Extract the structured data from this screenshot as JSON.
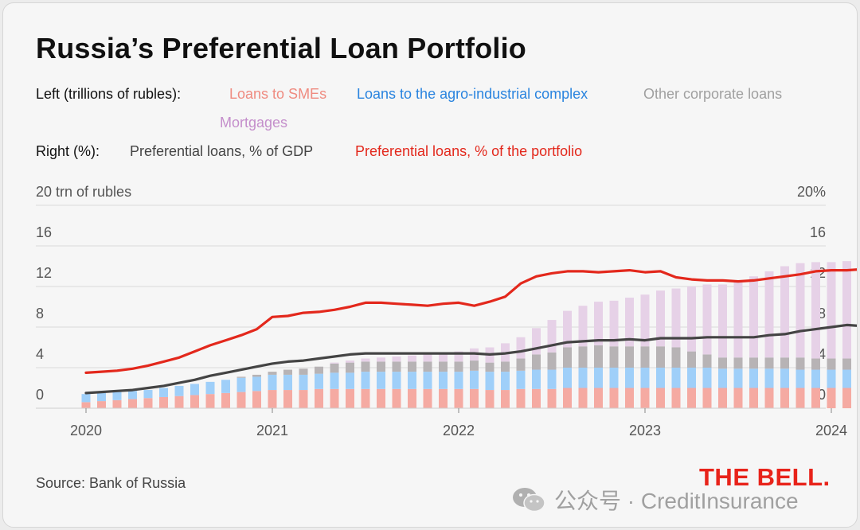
{
  "title": "Russia’s Preferential Loan Portfolio",
  "legend": {
    "left_label": "Left (trillions of rubles):",
    "right_label": "Right (%):",
    "items": {
      "sme": "Loans to SMEs",
      "agro": "Loans to the agro-industrial complex",
      "other": "Other corporate loans",
      "mortgages": "Mortgages",
      "gdp": "Preferential loans, % of GDP",
      "portfolio": "Preferential loans, % of the portfolio"
    }
  },
  "source": "Source: Bank of Russia",
  "brand": "THE BELL.",
  "watermark": "公众号 · CreditInsurance",
  "colors": {
    "sme": "#f5aaa2",
    "agro": "#9fcff9",
    "other": "#b7b3b5",
    "mortgages": "#e6d1e7",
    "gdp": "#444444",
    "portfolio": "#e3281c",
    "legend_sme": "#ef8b80",
    "legend_agro": "#2a84df",
    "legend_other": "#a0a0a0",
    "legend_mortgages": "#c48ecb"
  },
  "chart_data": {
    "type": "bar",
    "stacked": true,
    "left_axis": {
      "unit_label": "20 trn of rubles",
      "ticks": [
        "0",
        "4",
        "8",
        "12",
        "16"
      ],
      "ylim": [
        0,
        20
      ]
    },
    "right_axis": {
      "unit_label": "20%",
      "ticks": [
        "0",
        "4",
        "8",
        "12",
        "16"
      ],
      "ylim": [
        0,
        20
      ]
    },
    "x_ticks": [
      "2020",
      "2021",
      "2022",
      "2023",
      "2024"
    ],
    "grid": true,
    "period": "monthly, Jan 2020 – Jun 2024",
    "series": [
      {
        "name": "Loans to SMEs",
        "key": "sme",
        "axis": "left",
        "values": [
          0.6,
          0.7,
          0.8,
          0.9,
          1.0,
          1.1,
          1.2,
          1.3,
          1.4,
          1.5,
          1.6,
          1.7,
          1.8,
          1.8,
          1.8,
          1.9,
          1.9,
          1.9,
          1.9,
          1.9,
          1.9,
          1.9,
          1.9,
          1.9,
          1.9,
          1.9,
          1.8,
          1.8,
          1.9,
          1.9,
          1.9,
          2.0,
          2.0,
          2.0,
          2.0,
          2.0,
          2.0,
          2.0,
          2.0,
          2.0,
          2.0,
          2.0,
          2.0,
          2.0,
          2.0,
          2.0,
          2.0,
          2.0,
          2.0,
          2.0,
          2.0,
          2.1,
          2.1,
          2.1
        ]
      },
      {
        "name": "Loans to the agro-industrial complex",
        "key": "agro",
        "axis": "left",
        "values": [
          0.8,
          0.8,
          0.8,
          0.8,
          0.8,
          0.9,
          1.0,
          1.1,
          1.2,
          1.3,
          1.4,
          1.4,
          1.5,
          1.5,
          1.5,
          1.5,
          1.6,
          1.6,
          1.7,
          1.7,
          1.7,
          1.7,
          1.7,
          1.7,
          1.7,
          1.8,
          1.8,
          1.8,
          1.8,
          1.9,
          1.9,
          2.0,
          2.0,
          2.0,
          2.0,
          2.0,
          2.0,
          2.0,
          2.0,
          2.0,
          2.0,
          1.9,
          1.9,
          1.9,
          1.9,
          1.9,
          1.8,
          1.8,
          1.8,
          1.8,
          1.8,
          1.8,
          1.8,
          1.8
        ]
      },
      {
        "name": "Other corporate loans",
        "key": "other",
        "axis": "left",
        "values": [
          0,
          0,
          0,
          0,
          0,
          0,
          0,
          0,
          0,
          0,
          0.1,
          0.2,
          0.3,
          0.5,
          0.6,
          0.7,
          0.9,
          1.0,
          1.0,
          1.0,
          1.0,
          1.0,
          1.0,
          1.0,
          1.0,
          1.0,
          0.9,
          1.0,
          1.2,
          1.5,
          1.7,
          2.0,
          2.1,
          2.2,
          2.1,
          2.1,
          2.1,
          2.1,
          2.0,
          1.6,
          1.3,
          1.1,
          1.1,
          1.1,
          1.1,
          1.1,
          1.2,
          1.1,
          1.1,
          1.1,
          1.1,
          1.2,
          1.3,
          1.2
        ]
      },
      {
        "name": "Mortgages",
        "key": "mortgages",
        "axis": "left",
        "values": [
          0,
          0,
          0,
          0,
          0,
          0,
          0,
          0,
          0,
          0,
          0,
          0,
          0,
          0,
          0,
          0,
          0.1,
          0.2,
          0.3,
          0.4,
          0.5,
          0.6,
          0.7,
          0.8,
          1.0,
          1.2,
          1.5,
          1.8,
          2.1,
          2.6,
          3.2,
          3.6,
          4.0,
          4.3,
          4.5,
          4.8,
          5.1,
          5.5,
          5.8,
          6.4,
          6.9,
          7.2,
          7.5,
          8.0,
          8.5,
          9.0,
          9.3,
          9.5,
          9.5,
          9.6,
          10.0,
          10.5,
          10.9,
          10.8
        ]
      },
      {
        "name": "Preferential loans, % of GDP",
        "key": "gdp",
        "axis": "right",
        "chart": "line",
        "values": [
          1.5,
          1.6,
          1.7,
          1.8,
          2.0,
          2.2,
          2.5,
          2.8,
          3.2,
          3.5,
          3.8,
          4.1,
          4.4,
          4.6,
          4.7,
          4.9,
          5.1,
          5.3,
          5.4,
          5.4,
          5.4,
          5.4,
          5.4,
          5.4,
          5.4,
          5.4,
          5.3,
          5.4,
          5.6,
          5.9,
          6.2,
          6.5,
          6.6,
          6.7,
          6.7,
          6.8,
          6.7,
          6.9,
          6.9,
          6.9,
          7.0,
          7.0,
          7.0,
          7.0,
          7.2,
          7.3,
          7.6,
          7.8,
          8.0,
          8.2,
          8.1,
          7.8,
          7.8,
          7.7
        ]
      },
      {
        "name": "Preferential loans, % of the portfolio",
        "key": "portfolio",
        "axis": "right",
        "chart": "line",
        "values": [
          3.5,
          3.6,
          3.7,
          3.9,
          4.2,
          4.6,
          5.0,
          5.6,
          6.2,
          6.7,
          7.2,
          7.8,
          9.0,
          9.1,
          9.4,
          9.5,
          9.7,
          10.0,
          10.4,
          10.4,
          10.3,
          10.2,
          10.1,
          10.3,
          10.4,
          10.1,
          10.5,
          11.0,
          12.3,
          13.0,
          13.3,
          13.5,
          13.5,
          13.4,
          13.5,
          13.6,
          13.4,
          13.5,
          12.9,
          12.7,
          12.6,
          12.6,
          12.5,
          12.6,
          12.8,
          13.0,
          13.2,
          13.5,
          13.6,
          13.6,
          13.7,
          13.8,
          14.0,
          13.8
        ]
      }
    ]
  }
}
